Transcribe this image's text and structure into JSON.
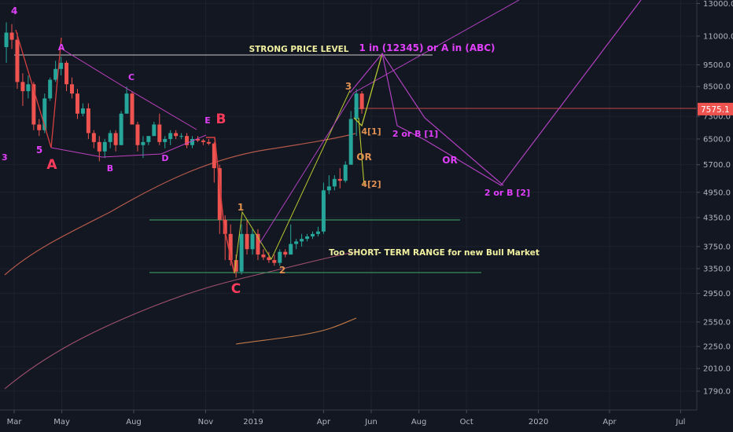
{
  "chart_data": {
    "type": "candlestick",
    "y_scale": "log",
    "y_range": [
      1600,
      13500
    ],
    "y_ticks": [
      "13000.0",
      "11000.0",
      "9500.0",
      "8500.0",
      "7300.0",
      "6500.0",
      "5700.0",
      "4950.0",
      "4350.0",
      "3750.0",
      "3350.0",
      "2950.0",
      "2550.0",
      "2250.0",
      "2010.0",
      "1790.0"
    ],
    "x_ticks": [
      "Mar",
      "May",
      "Aug",
      "Nov",
      "2019",
      "Apr",
      "Jun",
      "Aug",
      "Oct",
      "2020",
      "Apr",
      "Jul"
    ],
    "last_price_label": "7575.1",
    "last_price": 7575.1,
    "candles": [
      {
        "date": "2018-02-19",
        "o": 10400,
        "h": 11800,
        "l": 9600,
        "c": 11200
      },
      {
        "date": "2018-02-26",
        "o": 11200,
        "h": 11700,
        "l": 10300,
        "c": 10800
      },
      {
        "date": "2018-03-05",
        "o": 10800,
        "h": 11200,
        "l": 8400,
        "c": 8700
      },
      {
        "date": "2018-03-12",
        "o": 8700,
        "h": 9100,
        "l": 7700,
        "c": 8300
      },
      {
        "date": "2018-03-19",
        "o": 8300,
        "h": 9000,
        "l": 8000,
        "c": 8600
      },
      {
        "date": "2018-03-26",
        "o": 8600,
        "h": 8700,
        "l": 6800,
        "c": 7000
      },
      {
        "date": "2018-04-02",
        "o": 7000,
        "h": 7200,
        "l": 6600,
        "c": 6800
      },
      {
        "date": "2018-04-09",
        "o": 6800,
        "h": 8200,
        "l": 6700,
        "c": 8000
      },
      {
        "date": "2018-04-16",
        "o": 8000,
        "h": 8900,
        "l": 7900,
        "c": 8800
      },
      {
        "date": "2018-04-23",
        "o": 8800,
        "h": 9700,
        "l": 8700,
        "c": 9300
      },
      {
        "date": "2018-04-30",
        "o": 9300,
        "h": 9900,
        "l": 9000,
        "c": 9600
      },
      {
        "date": "2018-05-07",
        "o": 9600,
        "h": 9700,
        "l": 8300,
        "c": 8600
      },
      {
        "date": "2018-05-14",
        "o": 8600,
        "h": 8900,
        "l": 8000,
        "c": 8200
      },
      {
        "date": "2018-05-21",
        "o": 8200,
        "h": 8400,
        "l": 7200,
        "c": 7400
      },
      {
        "date": "2018-05-28",
        "o": 7400,
        "h": 7800,
        "l": 7300,
        "c": 7600
      },
      {
        "date": "2018-06-04",
        "o": 7600,
        "h": 7800,
        "l": 6500,
        "c": 6700
      },
      {
        "date": "2018-06-11",
        "o": 6700,
        "h": 6800,
        "l": 6200,
        "c": 6400
      },
      {
        "date": "2018-06-18",
        "o": 6400,
        "h": 6600,
        "l": 5800,
        "c": 6100
      },
      {
        "date": "2018-06-25",
        "o": 6100,
        "h": 6500,
        "l": 5900,
        "c": 6400
      },
      {
        "date": "2018-07-02",
        "o": 6400,
        "h": 6800,
        "l": 6200,
        "c": 6700
      },
      {
        "date": "2018-07-09",
        "o": 6700,
        "h": 6800,
        "l": 6100,
        "c": 6300
      },
      {
        "date": "2018-07-16",
        "o": 6300,
        "h": 7500,
        "l": 6300,
        "c": 7400
      },
      {
        "date": "2018-07-23",
        "o": 7400,
        "h": 8500,
        "l": 7400,
        "c": 8200
      },
      {
        "date": "2018-07-30",
        "o": 8200,
        "h": 8300,
        "l": 7000,
        "c": 7000
      },
      {
        "date": "2018-08-06",
        "o": 7000,
        "h": 7100,
        "l": 6100,
        "c": 6300
      },
      {
        "date": "2018-08-13",
        "o": 6300,
        "h": 6600,
        "l": 5900,
        "c": 6400
      },
      {
        "date": "2018-08-20",
        "o": 6400,
        "h": 6600,
        "l": 6300,
        "c": 6600
      },
      {
        "date": "2018-08-27",
        "o": 6600,
        "h": 7100,
        "l": 6600,
        "c": 7000
      },
      {
        "date": "2018-09-03",
        "o": 7000,
        "h": 7400,
        "l": 6300,
        "c": 6400
      },
      {
        "date": "2018-09-10",
        "o": 6400,
        "h": 6600,
        "l": 6200,
        "c": 6500
      },
      {
        "date": "2018-09-17",
        "o": 6500,
        "h": 6800,
        "l": 6300,
        "c": 6700
      },
      {
        "date": "2018-09-24",
        "o": 6700,
        "h": 6800,
        "l": 6500,
        "c": 6600
      },
      {
        "date": "2018-10-01",
        "o": 6600,
        "h": 6700,
        "l": 6500,
        "c": 6600
      },
      {
        "date": "2018-10-08",
        "o": 6600,
        "h": 6700,
        "l": 6200,
        "c": 6300
      },
      {
        "date": "2018-10-15",
        "o": 6300,
        "h": 6600,
        "l": 6200,
        "c": 6500
      },
      {
        "date": "2018-10-22",
        "o": 6500,
        "h": 6600,
        "l": 6400,
        "c": 6450
      },
      {
        "date": "2018-10-29",
        "o": 6450,
        "h": 6500,
        "l": 6300,
        "c": 6400
      },
      {
        "date": "2018-11-05",
        "o": 6400,
        "h": 6500,
        "l": 6300,
        "c": 6350
      },
      {
        "date": "2018-11-12",
        "o": 6350,
        "h": 6400,
        "l": 5200,
        "c": 5600
      },
      {
        "date": "2018-11-19",
        "o": 5600,
        "h": 5700,
        "l": 4000,
        "c": 4300
      },
      {
        "date": "2018-11-26",
        "o": 4300,
        "h": 4400,
        "l": 3500,
        "c": 4000
      },
      {
        "date": "2018-12-03",
        "o": 4000,
        "h": 4200,
        "l": 3400,
        "c": 3500
      },
      {
        "date": "2018-12-10",
        "o": 3500,
        "h": 3600,
        "l": 3200,
        "c": 3300
      },
      {
        "date": "2018-12-17",
        "o": 3300,
        "h": 4200,
        "l": 3250,
        "c": 4000
      },
      {
        "date": "2018-12-24",
        "o": 4000,
        "h": 4300,
        "l": 3600,
        "c": 3700
      },
      {
        "date": "2018-12-31",
        "o": 3700,
        "h": 4100,
        "l": 3600,
        "c": 4000
      },
      {
        "date": "2019-01-07",
        "o": 4000,
        "h": 4100,
        "l": 3500,
        "c": 3600
      },
      {
        "date": "2019-01-14",
        "o": 3600,
        "h": 3700,
        "l": 3500,
        "c": 3550
      },
      {
        "date": "2019-01-21",
        "o": 3550,
        "h": 3650,
        "l": 3450,
        "c": 3500
      },
      {
        "date": "2019-01-28",
        "o": 3500,
        "h": 3600,
        "l": 3400,
        "c": 3450
      },
      {
        "date": "2019-02-04",
        "o": 3450,
        "h": 3700,
        "l": 3400,
        "c": 3650
      },
      {
        "date": "2019-02-11",
        "o": 3650,
        "h": 3700,
        "l": 3550,
        "c": 3600
      },
      {
        "date": "2019-02-18",
        "o": 3600,
        "h": 4200,
        "l": 3600,
        "c": 3800
      },
      {
        "date": "2019-02-25",
        "o": 3800,
        "h": 3900,
        "l": 3700,
        "c": 3850
      },
      {
        "date": "2019-03-04",
        "o": 3850,
        "h": 4000,
        "l": 3750,
        "c": 3900
      },
      {
        "date": "2019-03-11",
        "o": 3900,
        "h": 4000,
        "l": 3850,
        "c": 3950
      },
      {
        "date": "2019-03-18",
        "o": 3950,
        "h": 4050,
        "l": 3900,
        "c": 4000
      },
      {
        "date": "2019-03-25",
        "o": 4000,
        "h": 4150,
        "l": 3950,
        "c": 4050
      },
      {
        "date": "2019-04-01",
        "o": 4050,
        "h": 5200,
        "l": 4000,
        "c": 5000
      },
      {
        "date": "2019-04-08",
        "o": 5000,
        "h": 5400,
        "l": 4900,
        "c": 5100
      },
      {
        "date": "2019-04-15",
        "o": 5100,
        "h": 5400,
        "l": 5000,
        "c": 5300
      },
      {
        "date": "2019-04-22",
        "o": 5300,
        "h": 5600,
        "l": 5050,
        "c": 5250
      },
      {
        "date": "2019-04-29",
        "o": 5250,
        "h": 5800,
        "l": 5200,
        "c": 5700
      },
      {
        "date": "2019-05-06",
        "o": 5700,
        "h": 7500,
        "l": 5700,
        "c": 7200
      },
      {
        "date": "2019-05-13",
        "o": 7200,
        "h": 8400,
        "l": 6600,
        "c": 8200
      },
      {
        "date": "2019-05-20",
        "o": 8200,
        "h": 8300,
        "l": 7400,
        "c": 7575.1
      }
    ],
    "annotations": [
      "4",
      "A",
      "5",
      "3",
      "A",
      "B",
      "C",
      "D",
      "E",
      "B",
      "C",
      "1",
      "2",
      "3",
      "4[1]",
      "OR",
      "4[2]",
      "2 or B [1]",
      "OR",
      "2 or B [2]",
      "STRONG PRICE LEVEL",
      "1 in (12345) or A in (ABC)",
      "Too SHORT- TERM RANGE for new Bull Market"
    ]
  },
  "colors": {
    "background": "#131722",
    "up": "#26a69a",
    "down": "#ef5350",
    "magenta": "#e040fb",
    "orange": "#f0a050",
    "red_label": "#ff3b5c",
    "green_line": "#3fa86b",
    "last_price_bg": "#ef5350",
    "yellow_green": "#b8c830"
  },
  "icons": []
}
